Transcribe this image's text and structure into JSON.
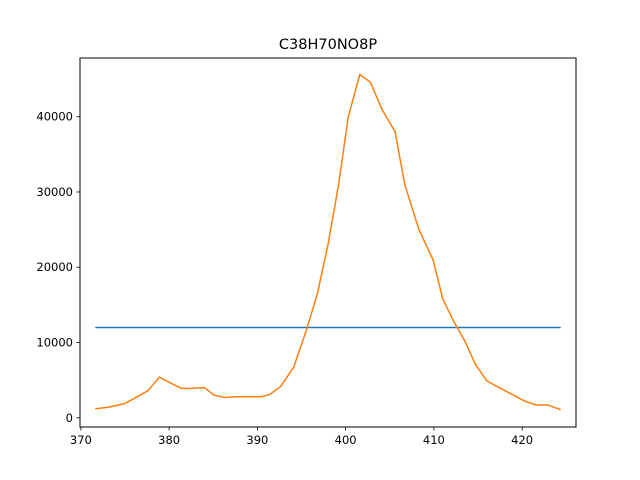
{
  "chart_data": {
    "type": "line",
    "title": "C38H70NO8P",
    "xlabel": "",
    "ylabel": "",
    "xlim": [
      369.9,
      426.1
    ],
    "ylim": [
      -1225,
      47800
    ],
    "xticks": [
      370,
      380,
      390,
      400,
      410,
      420
    ],
    "yticks": [
      0,
      10000,
      20000,
      30000,
      40000
    ],
    "grid": false,
    "legend": "none",
    "series": [
      {
        "color": "#1f77b4",
        "x": [
          371.7,
          424.3
        ],
        "y": [
          12000,
          12000
        ]
      },
      {
        "color": "#ff7f0e",
        "x": [
          371.7,
          373.1,
          375.0,
          377.6,
          378.9,
          380.2,
          381.4,
          382.6,
          384.0,
          385.1,
          386.3,
          387.6,
          388.9,
          390.4,
          391.4,
          392.6,
          394.1,
          395.6,
          396.8,
          398.0,
          399.2,
          400.3,
          401.6,
          402.8,
          404.1,
          405.6,
          406.7,
          408.3,
          409.9,
          411.0,
          412.2,
          413.5,
          414.7,
          416.0,
          417.4,
          418.7,
          420.3,
          421.6,
          422.9,
          424.3
        ],
        "y": [
          1200,
          1400,
          1900,
          3600,
          5400,
          4600,
          3900,
          3900,
          4000,
          3000,
          2700,
          2800,
          2800,
          2800,
          3100,
          4100,
          6700,
          11800,
          16500,
          23000,
          31000,
          40000,
          45600,
          44600,
          41000,
          38000,
          31000,
          25000,
          21000,
          15800,
          12900,
          10200,
          7100,
          4900,
          4000,
          3200,
          2200,
          1700,
          1700,
          1100
        ]
      }
    ]
  }
}
